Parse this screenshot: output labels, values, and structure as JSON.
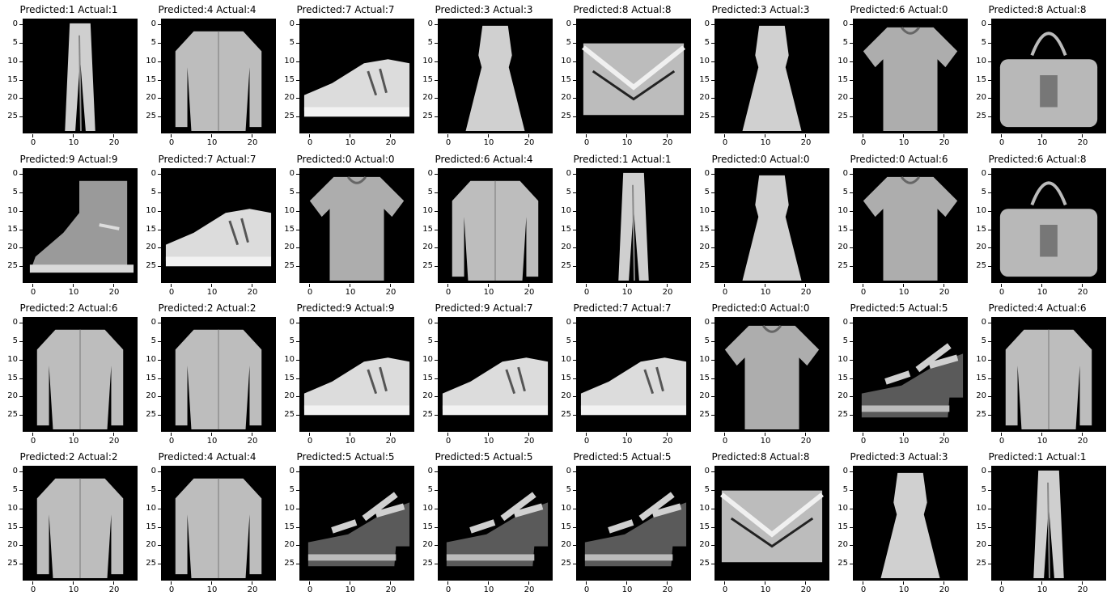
{
  "figure": {
    "title_prefix_predicted": "Predicted:",
    "title_prefix_actual": "Actual:",
    "yticks": [
      "0",
      "5",
      "10",
      "15",
      "20",
      "25"
    ],
    "xticks": [
      "0",
      "10",
      "20"
    ],
    "colors": {
      "background": "#000000",
      "figure_bg": "#ffffff"
    },
    "panels": [
      {
        "title": "Predicted:1 Actual:1",
        "predicted": 1,
        "actual": 1,
        "item": "trouser"
      },
      {
        "title": "Predicted:4 Actual:4",
        "predicted": 4,
        "actual": 4,
        "item": "coat"
      },
      {
        "title": "Predicted:7 Actual:7",
        "predicted": 7,
        "actual": 7,
        "item": "sneaker"
      },
      {
        "title": "Predicted:3 Actual:3",
        "predicted": 3,
        "actual": 3,
        "item": "dress"
      },
      {
        "title": "Predicted:8 Actual:8",
        "predicted": 8,
        "actual": 8,
        "item": "bag-clutch"
      },
      {
        "title": "Predicted:3 Actual:3",
        "predicted": 3,
        "actual": 3,
        "item": "dress"
      },
      {
        "title": "Predicted:6 Actual:0",
        "predicted": 6,
        "actual": 0,
        "item": "tshirt"
      },
      {
        "title": "Predicted:8 Actual:8",
        "predicted": 8,
        "actual": 8,
        "item": "bag-handle"
      },
      {
        "title": "Predicted:9 Actual:9",
        "predicted": 9,
        "actual": 9,
        "item": "boot"
      },
      {
        "title": "Predicted:7 Actual:7",
        "predicted": 7,
        "actual": 7,
        "item": "sneaker"
      },
      {
        "title": "Predicted:0 Actual:0",
        "predicted": 0,
        "actual": 0,
        "item": "tshirt"
      },
      {
        "title": "Predicted:6 Actual:4",
        "predicted": 6,
        "actual": 4,
        "item": "coat"
      },
      {
        "title": "Predicted:1 Actual:1",
        "predicted": 1,
        "actual": 1,
        "item": "trouser"
      },
      {
        "title": "Predicted:0 Actual:0",
        "predicted": 0,
        "actual": 0,
        "item": "dress"
      },
      {
        "title": "Predicted:0 Actual:6",
        "predicted": 0,
        "actual": 6,
        "item": "tshirt"
      },
      {
        "title": "Predicted:6 Actual:8",
        "predicted": 6,
        "actual": 8,
        "item": "bag-handle"
      },
      {
        "title": "Predicted:2 Actual:6",
        "predicted": 2,
        "actual": 6,
        "item": "coat"
      },
      {
        "title": "Predicted:2 Actual:2",
        "predicted": 2,
        "actual": 2,
        "item": "coat"
      },
      {
        "title": "Predicted:9 Actual:9",
        "predicted": 9,
        "actual": 9,
        "item": "sneaker"
      },
      {
        "title": "Predicted:9 Actual:7",
        "predicted": 9,
        "actual": 7,
        "item": "sneaker"
      },
      {
        "title": "Predicted:7 Actual:7",
        "predicted": 7,
        "actual": 7,
        "item": "sneaker"
      },
      {
        "title": "Predicted:0 Actual:0",
        "predicted": 0,
        "actual": 0,
        "item": "tshirt"
      },
      {
        "title": "Predicted:5 Actual:5",
        "predicted": 5,
        "actual": 5,
        "item": "sandal"
      },
      {
        "title": "Predicted:4 Actual:6",
        "predicted": 4,
        "actual": 6,
        "item": "coat"
      },
      {
        "title": "Predicted:2 Actual:2",
        "predicted": 2,
        "actual": 2,
        "item": "coat"
      },
      {
        "title": "Predicted:4 Actual:4",
        "predicted": 4,
        "actual": 4,
        "item": "coat"
      },
      {
        "title": "Predicted:5 Actual:5",
        "predicted": 5,
        "actual": 5,
        "item": "sandal"
      },
      {
        "title": "Predicted:5 Actual:5",
        "predicted": 5,
        "actual": 5,
        "item": "sandal"
      },
      {
        "title": "Predicted:5 Actual:5",
        "predicted": 5,
        "actual": 5,
        "item": "sandal"
      },
      {
        "title": "Predicted:8 Actual:8",
        "predicted": 8,
        "actual": 8,
        "item": "bag-clutch"
      },
      {
        "title": "Predicted:3 Actual:3",
        "predicted": 3,
        "actual": 3,
        "item": "dress"
      },
      {
        "title": "Predicted:1 Actual:1",
        "predicted": 1,
        "actual": 1,
        "item": "trouser"
      }
    ]
  }
}
